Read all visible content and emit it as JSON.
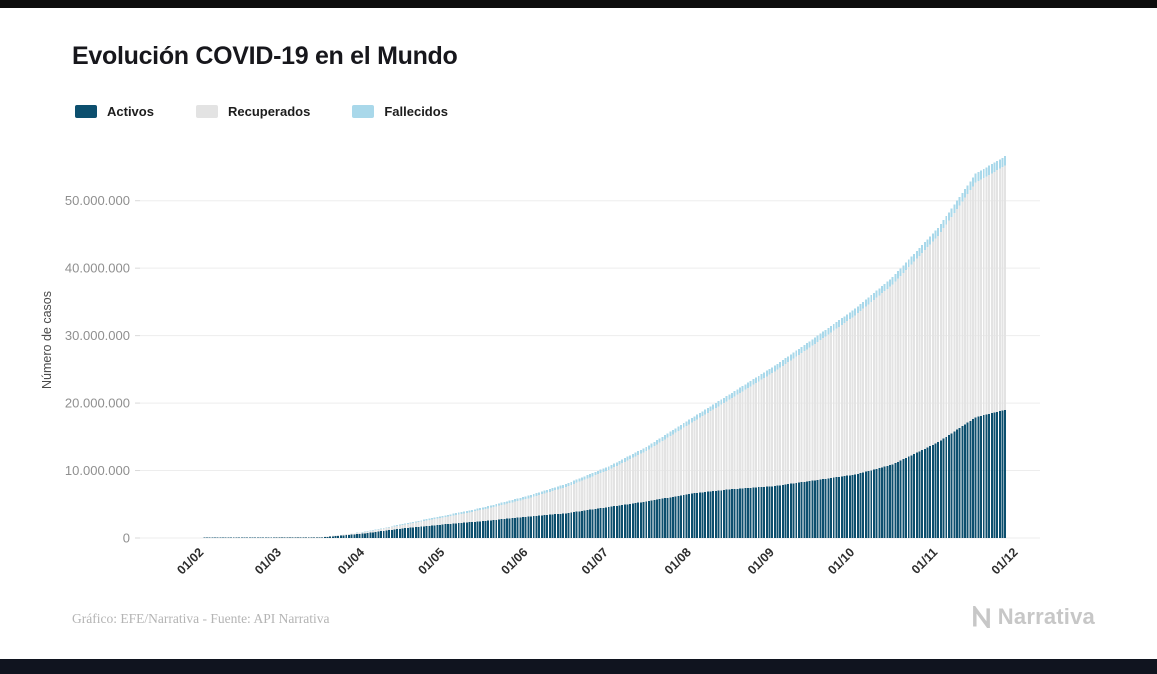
{
  "chart_data": {
    "type": "bar",
    "stacked": true,
    "title": "Evolución COVID-19 en el Mundo",
    "xlabel": "",
    "ylabel": "Número de casos",
    "legend_position": "top-left",
    "grid": "horizontal",
    "ylim": [
      0,
      59000000
    ],
    "y_ticks": [
      {
        "value": 0,
        "label": "0"
      },
      {
        "value": 10000000,
        "label": "10.000.000"
      },
      {
        "value": 20000000,
        "label": "20.000.000"
      },
      {
        "value": 30000000,
        "label": "30.000.000"
      },
      {
        "value": 40000000,
        "label": "40.000.000"
      },
      {
        "value": 50000000,
        "label": "50.000.000"
      }
    ],
    "x_domain_days": [
      -24,
      312
    ],
    "x_ticks": [
      {
        "day": 0,
        "label": "01/02"
      },
      {
        "day": 29,
        "label": "01/03"
      },
      {
        "day": 60,
        "label": "01/04"
      },
      {
        "day": 90,
        "label": "01/05"
      },
      {
        "day": 121,
        "label": "01/06"
      },
      {
        "day": 151,
        "label": "01/07"
      },
      {
        "day": 182,
        "label": "01/08"
      },
      {
        "day": 213,
        "label": "01/09"
      },
      {
        "day": 243,
        "label": "01/10"
      },
      {
        "day": 274,
        "label": "01/11"
      },
      {
        "day": 304,
        "label": "01/12"
      }
    ],
    "control_days_from_label": "01/02",
    "control_days": [
      0,
      14,
      29,
      44,
      60,
      74,
      90,
      104,
      121,
      135,
      151,
      165,
      182,
      196,
      213,
      227,
      243,
      257,
      274,
      288,
      299
    ],
    "bar_days": [
      0,
      299
    ],
    "series": [
      {
        "name": "Activos",
        "color": "#0c4f6e",
        "values": [
          11000,
          58000,
          43000,
          90000,
          690000,
          1420000,
          2040000,
          2500000,
          3190000,
          3660000,
          4600000,
          5400000,
          6600000,
          7200000,
          7700000,
          8500000,
          9400000,
          10900000,
          14200000,
          17900000,
          19000000
        ]
      },
      {
        "name": "Recuperados",
        "color": "#e3e3e3",
        "values": [
          300,
          9000,
          42000,
          78000,
          190000,
          510000,
          1070000,
          1700000,
          2700000,
          3900000,
          5500000,
          7500000,
          10500000,
          13300000,
          17000000,
          20000000,
          23600000,
          26700000,
          30600000,
          34800000,
          36200000
        ]
      },
      {
        "name": "Fallecidos",
        "color": "#a9d8ea",
        "values": [
          300,
          1700,
          3000,
          7000,
          47000,
          134000,
          239000,
          303000,
          376000,
          436000,
          514000,
          583000,
          685000,
          767000,
          854000,
          932000,
          1010000,
          1090000,
          1190000,
          1310000,
          1400000
        ]
      }
    ]
  },
  "footer": {
    "credit": "Gráfico: EFE/Narrativa - Fuente: API Narrativa",
    "brand": "Narrativa"
  }
}
